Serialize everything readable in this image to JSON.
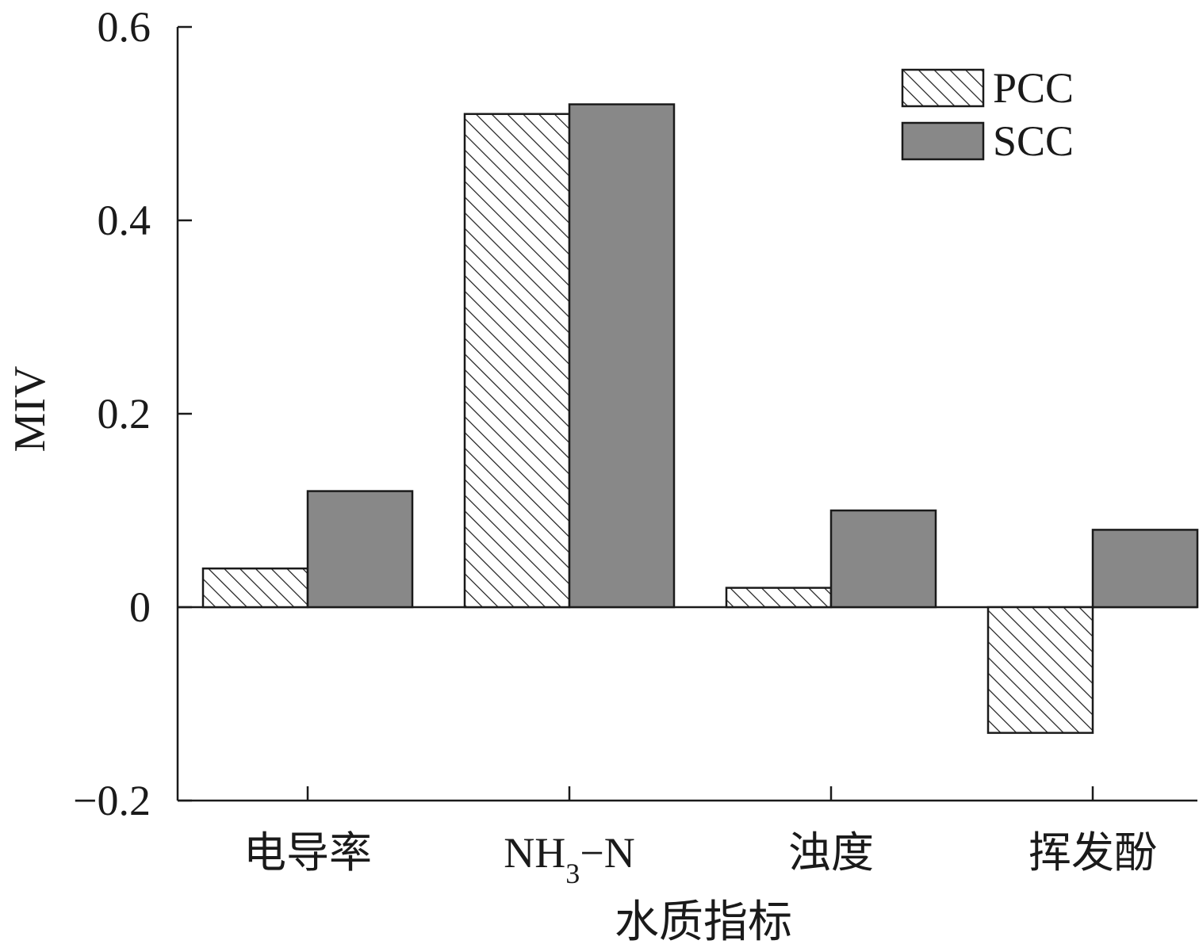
{
  "chart_data": {
    "type": "bar",
    "title": "",
    "xlabel": "水质指标",
    "ylabel": "MIV",
    "ylim": [
      -0.2,
      0.6
    ],
    "yticks": [
      -0.2,
      0,
      0.2,
      0.4,
      0.6
    ],
    "ytick_labels": [
      "−0.2",
      "0",
      "0.2",
      "0.4",
      "0.6"
    ],
    "categories": [
      "电导率",
      "NH3−N",
      "浊度",
      "挥发酚"
    ],
    "category_labels": [
      {
        "main": "电导率",
        "sub": "",
        "tail": ""
      },
      {
        "main": "NH",
        "sub": "3",
        "tail": "−N"
      },
      {
        "main": "浊度",
        "sub": "",
        "tail": ""
      },
      {
        "main": "挥发酚",
        "sub": "",
        "tail": ""
      }
    ],
    "series": [
      {
        "name": "PCC",
        "values": [
          0.04,
          0.51,
          0.02,
          -0.13
        ],
        "pattern": "hatch",
        "color": "#ffffff"
      },
      {
        "name": "SCC",
        "values": [
          0.12,
          0.52,
          0.1,
          0.08
        ],
        "pattern": "solid",
        "color": "#888888"
      }
    ],
    "grid": false,
    "legend_position": "top-right"
  }
}
